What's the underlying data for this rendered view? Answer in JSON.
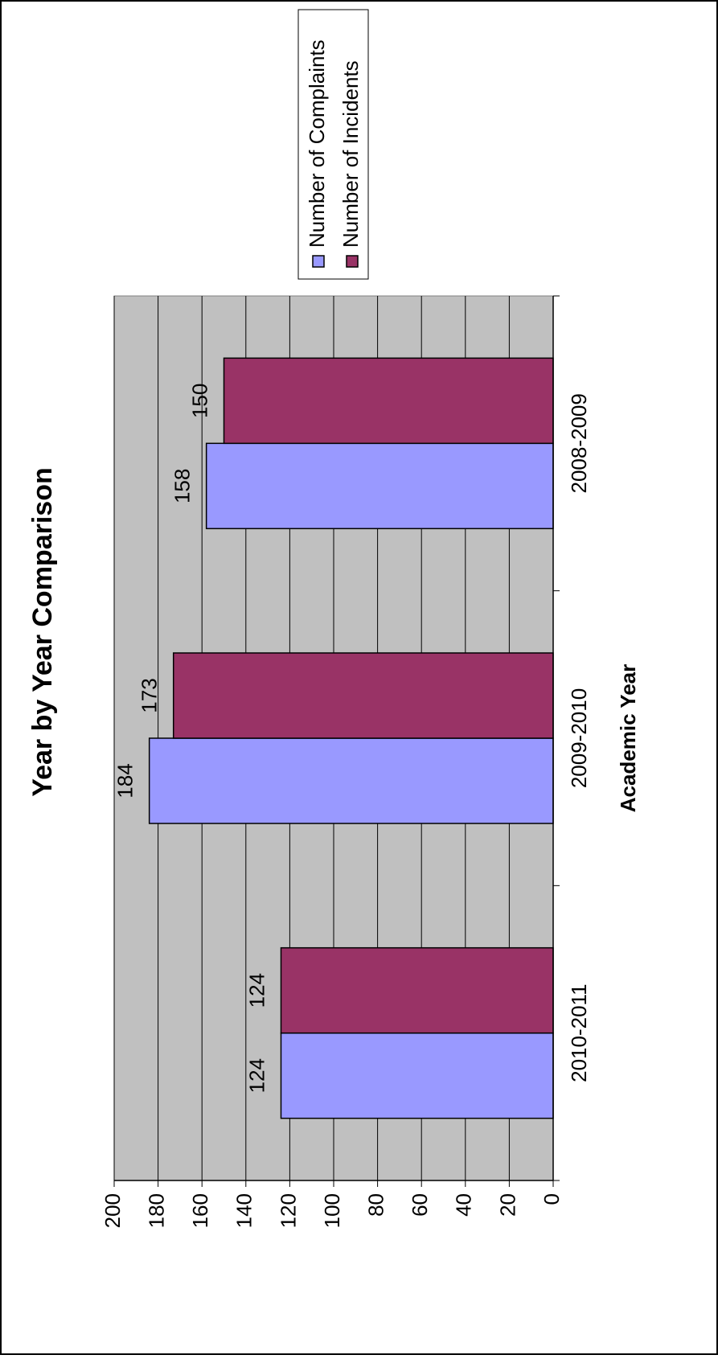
{
  "chart_data": {
    "type": "bar",
    "orientation": "rotated-90",
    "title": "Year by Year Comparison",
    "xlabel": "Academic Year",
    "ylabel": "",
    "categories": [
      "2010-2011",
      "2009-2010",
      "2008-2009"
    ],
    "series": [
      {
        "name": "Number of Complaints",
        "values": [
          124,
          184,
          158
        ],
        "color": "#9999ff"
      },
      {
        "name": "Number of Incidents",
        "values": [
          124,
          173,
          150
        ],
        "color": "#993366"
      }
    ],
    "ylim": [
      0,
      200
    ],
    "yticks": [
      "0",
      "20",
      "40",
      "60",
      "80",
      "100",
      "120",
      "140",
      "160",
      "180",
      "200"
    ],
    "data_labels": [
      [
        "124",
        "184",
        "158"
      ],
      [
        "124",
        "173",
        "150"
      ]
    ],
    "grid": true,
    "plot_background": "#c0c0c0",
    "legend_position": "top-right"
  }
}
